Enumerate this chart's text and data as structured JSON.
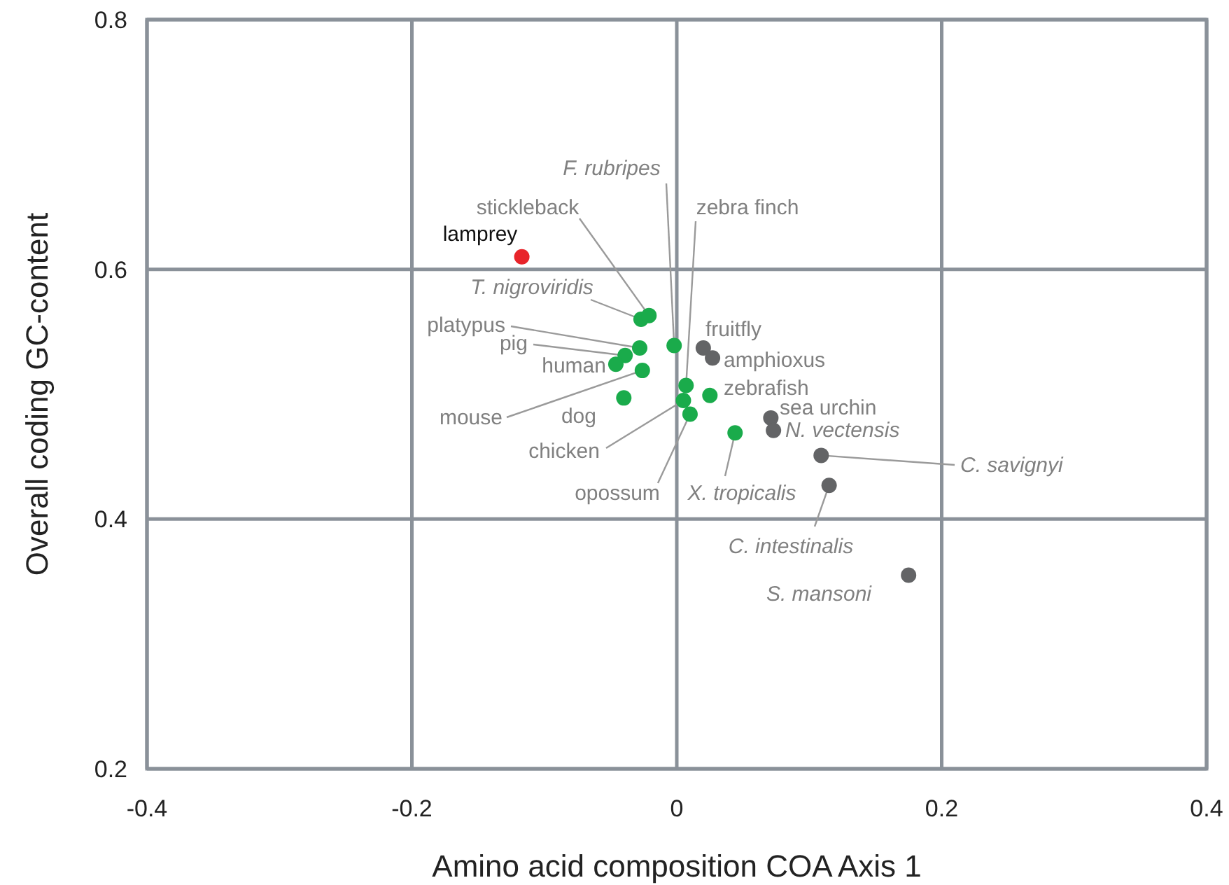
{
  "chart_data": {
    "type": "scatter",
    "xlabel": "Amino acid composition COA Axis 1",
    "ylabel": "Overall coding GC-content",
    "xlim": [
      -0.4,
      0.4
    ],
    "xticks": [
      -0.4,
      -0.2,
      0,
      0.2,
      0.4
    ],
    "ylim": [
      0.2,
      0.8
    ],
    "yticks": [
      0.2,
      0.4,
      0.6,
      0.8
    ],
    "grid": true,
    "marker": "circle",
    "series": [
      {
        "color": "#e8242a",
        "x": [
          -0.117
        ],
        "values": [
          0.61
        ]
      },
      {
        "color": "#1aab4b",
        "x": [
          -0.027,
          -0.021,
          -0.002,
          -0.028,
          -0.039,
          -0.046,
          -0.026,
          -0.04,
          0.007,
          0.005,
          0.01,
          0.025,
          0.044
        ],
        "values": [
          0.56,
          0.563,
          0.539,
          0.537,
          0.531,
          0.524,
          0.519,
          0.497,
          0.507,
          0.495,
          0.484,
          0.499,
          0.469
        ]
      },
      {
        "color": "#636466",
        "x": [
          0.02,
          0.027,
          0.071,
          0.073,
          0.109,
          0.115,
          0.175
        ],
        "values": [
          0.537,
          0.529,
          0.481,
          0.471,
          0.451,
          0.427,
          0.355
        ]
      }
    ],
    "annotations": [
      {
        "text": "lamprey",
        "x": -0.117,
        "y": 0.61
      },
      {
        "text": "T. nigroviridis",
        "x": -0.027,
        "y": 0.56
      },
      {
        "text": "stickleback",
        "x": -0.021,
        "y": 0.563
      },
      {
        "text": "F. rubripes",
        "x": -0.002,
        "y": 0.539
      },
      {
        "text": "platypus",
        "x": -0.028,
        "y": 0.537
      },
      {
        "text": "pig",
        "x": -0.039,
        "y": 0.531
      },
      {
        "text": "human",
        "x": -0.046,
        "y": 0.524
      },
      {
        "text": "mouse",
        "x": -0.026,
        "y": 0.519
      },
      {
        "text": "dog",
        "x": -0.04,
        "y": 0.497
      },
      {
        "text": "zebra finch",
        "x": 0.007,
        "y": 0.507
      },
      {
        "text": "chicken",
        "x": 0.005,
        "y": 0.495
      },
      {
        "text": "opossum",
        "x": 0.01,
        "y": 0.484
      },
      {
        "text": "zebrafish",
        "x": 0.025,
        "y": 0.499
      },
      {
        "text": "X. tropicalis",
        "x": 0.044,
        "y": 0.469
      },
      {
        "text": "fruitfly",
        "x": 0.02,
        "y": 0.537
      },
      {
        "text": "amphioxus",
        "x": 0.027,
        "y": 0.529
      },
      {
        "text": "sea urchin",
        "x": 0.071,
        "y": 0.481
      },
      {
        "text": "N. vectensis",
        "x": 0.073,
        "y": 0.471
      },
      {
        "text": "C. savignyi",
        "x": 0.109,
        "y": 0.451
      },
      {
        "text": "C. intestinalis",
        "x": 0.115,
        "y": 0.427
      },
      {
        "text": "S. mansoni",
        "x": 0.175,
        "y": 0.355
      }
    ]
  }
}
